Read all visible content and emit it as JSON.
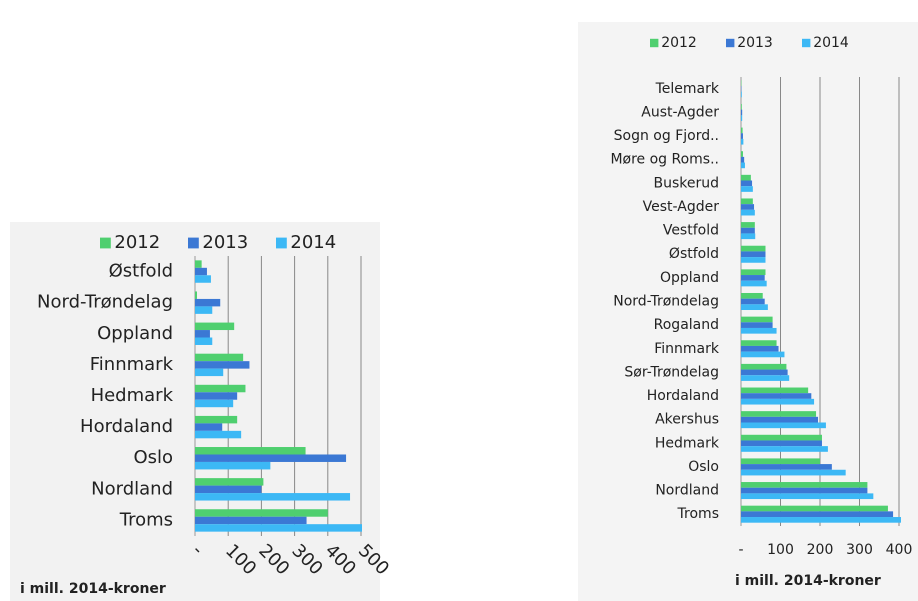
{
  "chart_data": [
    {
      "type": "barh",
      "categories": [
        "Østfold",
        "Nord-Trøndelag",
        "Oppland",
        "Finnmark",
        "Hedmark",
        "Hordaland",
        "Oslo",
        "Nordland",
        "Troms"
      ],
      "series": [
        {
          "name": "2012",
          "color": "#4fcf6f",
          "values": [
            20,
            6,
            118,
            145,
            152,
            127,
            333,
            206,
            400
          ]
        },
        {
          "name": "2013",
          "color": "#3b78d4",
          "values": [
            36,
            76,
            45,
            164,
            127,
            82,
            455,
            200,
            336
          ]
        },
        {
          "name": "2014",
          "color": "#3cb8f5",
          "values": [
            48,
            52,
            52,
            85,
            115,
            139,
            227,
            467,
            503
          ]
        }
      ],
      "xlim": [
        0,
        500
      ],
      "xticks": [
        {
          "value": 0,
          "label": "-"
        },
        100,
        200,
        300,
        400,
        500
      ],
      "x_label": "i mill. 2014-kroner",
      "grid": true,
      "legend": "top"
    },
    {
      "type": "barh",
      "categories": [
        "Telemark",
        "Aust-Agder",
        "Sogn og Fjord..",
        "Møre og Roms..",
        "Buskerud",
        "Vest-Agder",
        "Vestfold",
        "Østfold",
        "Oppland",
        "Nord-Trøndelag",
        "Rogaland",
        "Finnmark",
        "Sør-Trøndelag",
        "Hordaland",
        "Akershus",
        "Hedmark",
        "Oslo",
        "Nordland",
        "Troms"
      ],
      "series": [
        {
          "name": "2012",
          "color": "#4fcf6f",
          "values": [
            1,
            2,
            4,
            5,
            25,
            30,
            35,
            62,
            62,
            55,
            80,
            90,
            115,
            170,
            190,
            205,
            200,
            320,
            372
          ]
        },
        {
          "name": "2013",
          "color": "#3b78d4",
          "values": [
            1,
            3,
            5,
            8,
            28,
            33,
            35,
            62,
            60,
            60,
            80,
            95,
            118,
            178,
            195,
            205,
            230,
            320,
            385
          ]
        },
        {
          "name": "2014",
          "color": "#3cb8f5",
          "values": [
            2,
            3,
            6,
            10,
            30,
            35,
            36,
            62,
            65,
            68,
            90,
            110,
            122,
            185,
            215,
            220,
            265,
            335,
            405
          ]
        }
      ],
      "xlim": [
        0,
        400
      ],
      "xticks": [
        {
          "value": 0,
          "label": "-"
        },
        100,
        200,
        300,
        400
      ],
      "x_label": "i mill. 2014-kroner",
      "grid": true,
      "legend": "top"
    }
  ]
}
